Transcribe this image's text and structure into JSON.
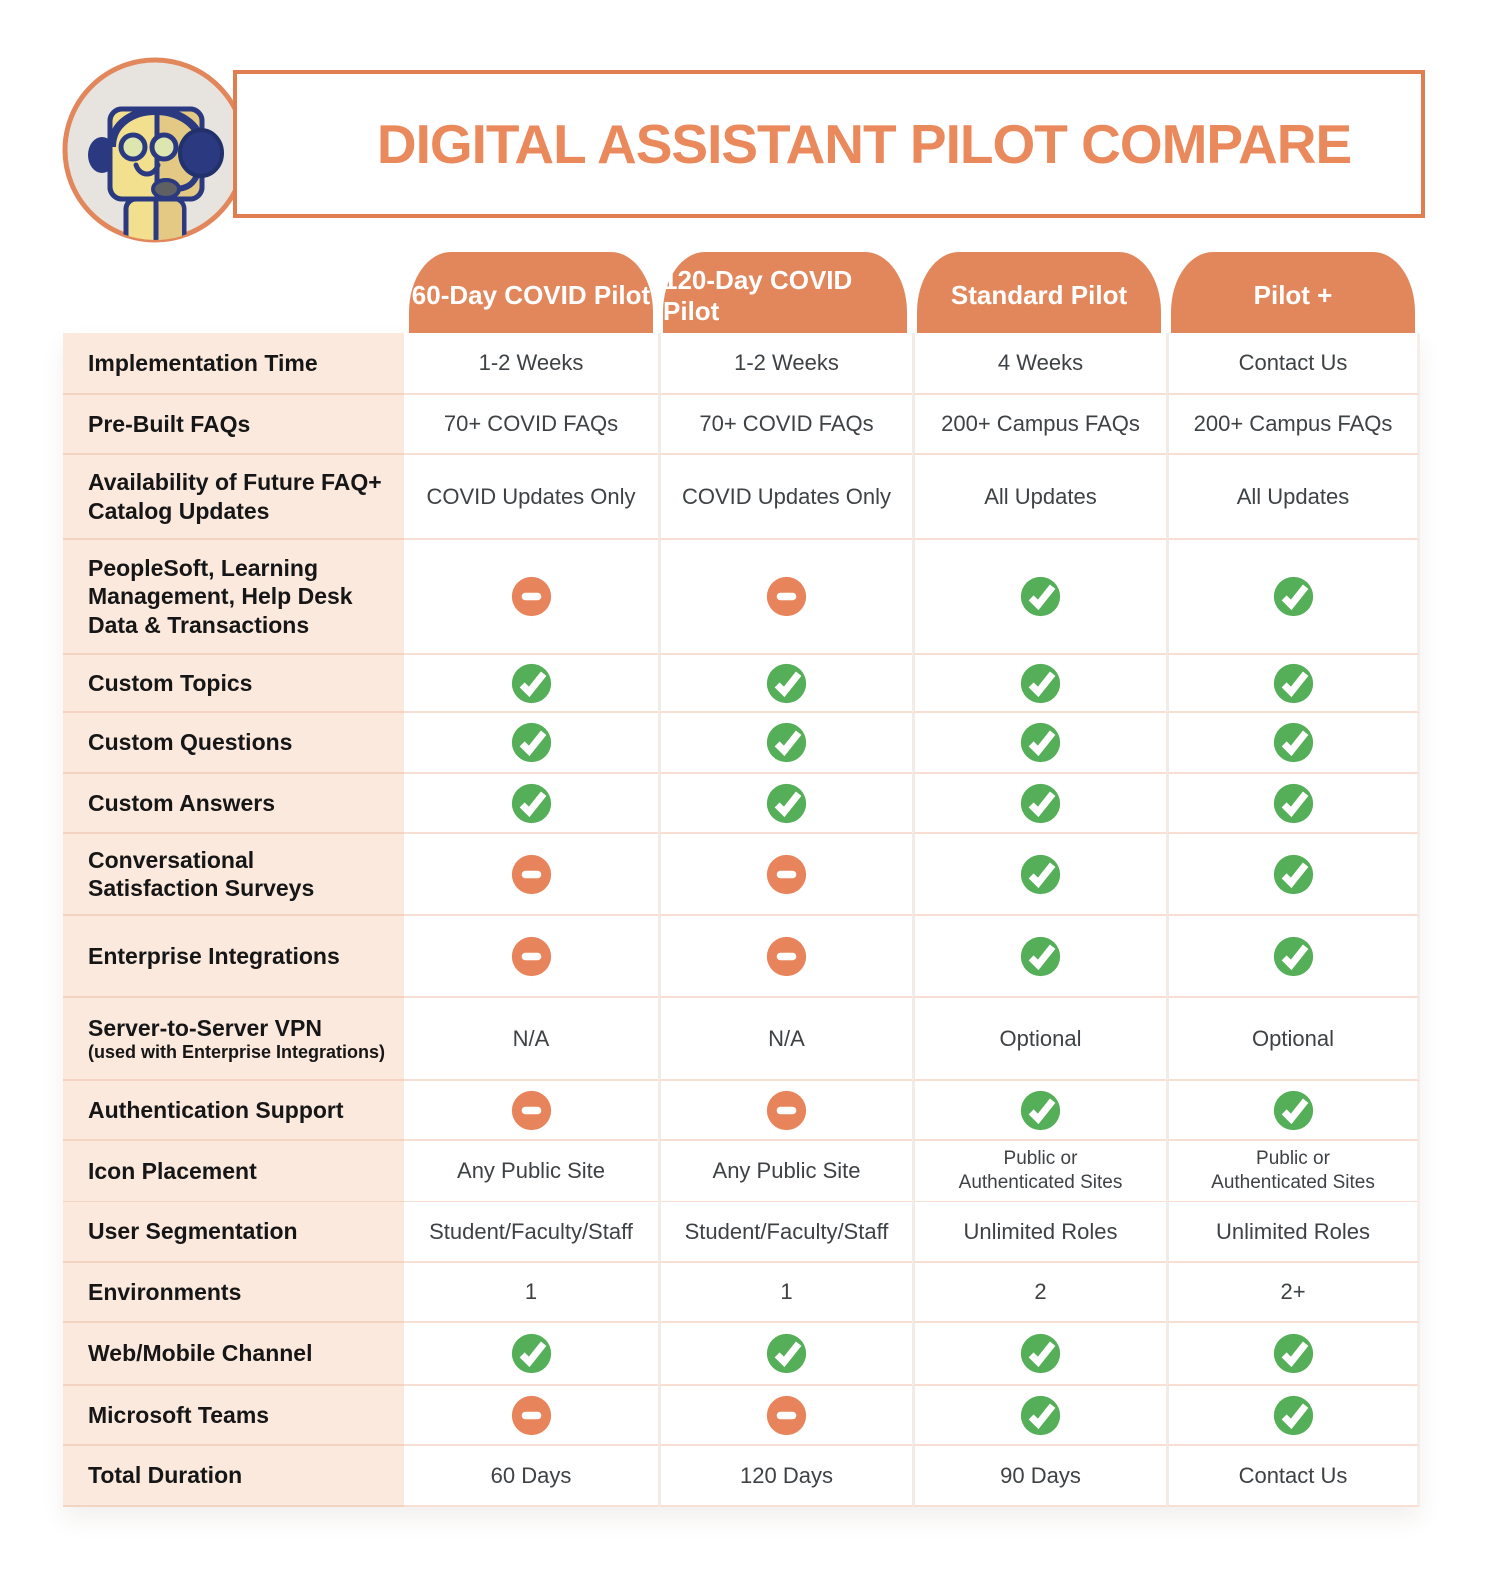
{
  "title": "DIGITAL ASSISTANT PILOT COMPARE",
  "mascot": "support-robot-with-headset",
  "colors": {
    "accent_orange": "#E2875C",
    "title_orange": "#E9895C",
    "check_green": "#55AE58",
    "minus_orange": "#E8845B",
    "label_bg": "#FBE9DE"
  },
  "icon_legend": {
    "yes": "check-icon",
    "no": "minus-icon"
  },
  "table": {
    "columns": [
      "60-Day COVID Pilot",
      "120-Day COVID Pilot",
      "Standard Pilot",
      "Pilot +"
    ],
    "rows": [
      {
        "label": "Implementation Time",
        "type": "text",
        "values": [
          "1-2 Weeks",
          "1-2 Weeks",
          "4 Weeks",
          "Contact Us"
        ]
      },
      {
        "label": "Pre-Built FAQs",
        "type": "text",
        "values": [
          "70+ COVID FAQs",
          "70+ COVID FAQs",
          "200+ Campus FAQs",
          "200+ Campus FAQs"
        ]
      },
      {
        "label": "Availability of Future FAQ+ Catalog Updates",
        "type": "text",
        "values": [
          "COVID Updates Only",
          "COVID Updates Only",
          "All Updates",
          "All Updates"
        ]
      },
      {
        "label": "PeopleSoft, Learning Management, Help Desk Data & Transactions",
        "type": "icons",
        "values": [
          "no",
          "no",
          "yes",
          "yes"
        ]
      },
      {
        "label": "Custom Topics",
        "type": "icons",
        "values": [
          "yes",
          "yes",
          "yes",
          "yes"
        ]
      },
      {
        "label": "Custom Questions",
        "type": "icons",
        "values": [
          "yes",
          "yes",
          "yes",
          "yes"
        ]
      },
      {
        "label": "Custom Answers",
        "type": "icons",
        "values": [
          "yes",
          "yes",
          "yes",
          "yes"
        ]
      },
      {
        "label": "Conversational Satisfaction Surveys",
        "type": "icons",
        "values": [
          "no",
          "no",
          "yes",
          "yes"
        ]
      },
      {
        "label": "Enterprise Integrations",
        "type": "icons",
        "values": [
          "no",
          "no",
          "yes",
          "yes"
        ]
      },
      {
        "label": "Server-to-Server VPN",
        "sublabel": "(used with Enterprise Integrations)",
        "type": "text",
        "values": [
          "N/A",
          "N/A",
          "Optional",
          "Optional"
        ]
      },
      {
        "label": "Authentication Support",
        "type": "icons",
        "values": [
          "no",
          "no",
          "yes",
          "yes"
        ]
      },
      {
        "label": "Icon Placement",
        "type": "text",
        "values": [
          "Any Public Site",
          "Any Public Site",
          "Public or\nAuthenticated Sites",
          "Public or\nAuthenticated Sites"
        ]
      },
      {
        "label": "User Segmentation",
        "type": "text",
        "values": [
          "Student/Faculty/Staff",
          "Student/Faculty/Staff",
          "Unlimited Roles",
          "Unlimited Roles"
        ]
      },
      {
        "label": "Environments",
        "type": "text",
        "values": [
          "1",
          "1",
          "2",
          "2+"
        ]
      },
      {
        "label": "Web/Mobile Channel",
        "type": "icons",
        "values": [
          "yes",
          "yes",
          "yes",
          "yes"
        ]
      },
      {
        "label": "Microsoft Teams",
        "type": "icons",
        "values": [
          "no",
          "no",
          "yes",
          "yes"
        ]
      },
      {
        "label": "Total Duration",
        "type": "text",
        "values": [
          "60 Days",
          "120 Days",
          "90 Days",
          "Contact Us"
        ]
      }
    ]
  }
}
